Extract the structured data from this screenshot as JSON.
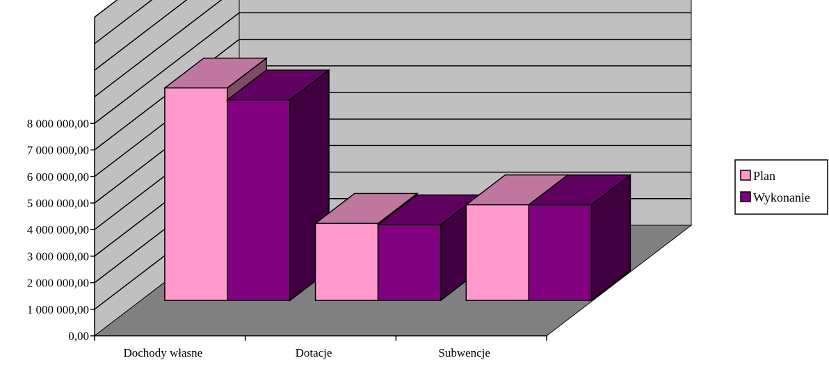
{
  "colors": {
    "back_wall": "#c0c0c0",
    "floor": "#808080",
    "grid": "#000000",
    "plan_front": "#ff99cc",
    "plan_top": "#c0779f",
    "plan_side": "#7f4c66",
    "wyk_front": "#800080",
    "wyk_top": "#600060",
    "wyk_side": "#400040"
  },
  "chart_data": {
    "type": "bar",
    "categories": [
      "Dochody własne",
      "Dotacje",
      "Subwencje"
    ],
    "series": [
      {
        "name": "Plan",
        "values": [
          8000000,
          2900000,
          3600000
        ]
      },
      {
        "name": "Wykonanie",
        "values": [
          7550000,
          2850000,
          3600000
        ]
      }
    ],
    "y_ticks": [
      {
        "value": 0,
        "label": "0,00"
      },
      {
        "value": 1000000,
        "label": "1 000 000,00"
      },
      {
        "value": 2000000,
        "label": "2 000 000,00"
      },
      {
        "value": 3000000,
        "label": "3 000 000,00"
      },
      {
        "value": 4000000,
        "label": "4 000 000,00"
      },
      {
        "value": 5000000,
        "label": "5 000 000,00"
      },
      {
        "value": 6000000,
        "label": "6 000 000,00"
      },
      {
        "value": 7000000,
        "label": "7 000 000,00"
      },
      {
        "value": 8000000,
        "label": "8 000 000,00"
      }
    ],
    "ylim": [
      0,
      12000000
    ],
    "grid": true,
    "legend_position": "right",
    "three_d": true
  }
}
